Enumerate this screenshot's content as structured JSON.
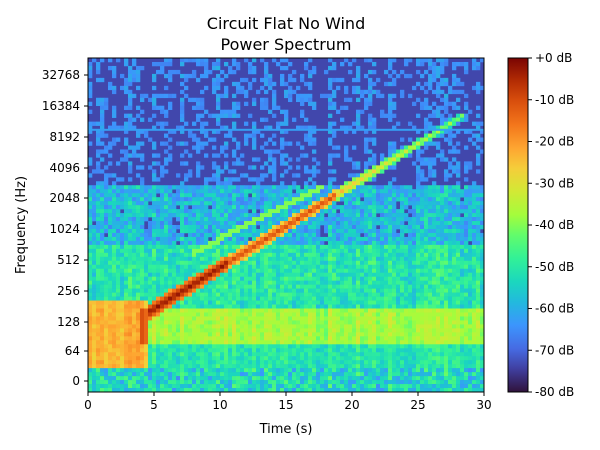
{
  "chart_data": {
    "type": "heatmap",
    "title": "Circuit Flat No Wind",
    "subtitle": "Power Spectrum",
    "xlabel": "Time (s)",
    "ylabel": "Frequency (Hz)",
    "xlim": [
      0,
      30
    ],
    "x_ticks": [
      "0",
      "5",
      "10",
      "15",
      "20",
      "25",
      "30"
    ],
    "y_scale": "symlog base 2 (0 at bottom)",
    "y_ticks": [
      "0",
      "64",
      "128",
      "256",
      "512",
      "1024",
      "2048",
      "4096",
      "8192",
      "16384",
      "32768"
    ],
    "colorbar": {
      "colormap": "turbo",
      "range_db": [
        -80,
        0
      ],
      "ticks": [
        "+0 dB",
        "-10 dB",
        "-20 dB",
        "-30 dB",
        "-40 dB",
        "-50 dB",
        "-60 dB",
        "-70 dB",
        "-80 dB"
      ]
    },
    "features": {
      "background_level_db_high_freq": -75,
      "horizontal_tone_hz": 9300,
      "main_sweep": {
        "start_time_s": 4.5,
        "start_freq_hz": 150,
        "end_time_s": 28.5,
        "end_freq_hz": 13000,
        "peak_db": 0
      },
      "low_band_level_db": -40,
      "low_band_freq_hz": [
        64,
        180
      ]
    }
  }
}
